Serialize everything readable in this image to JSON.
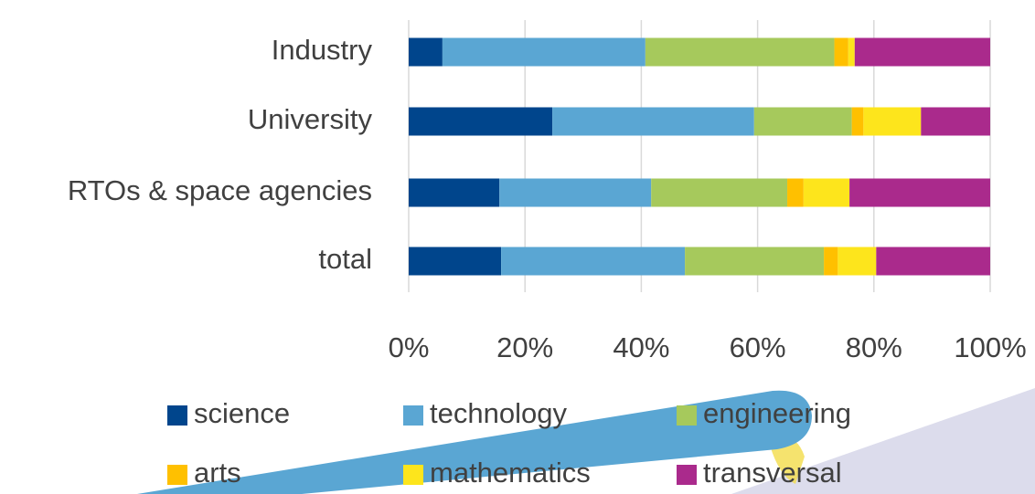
{
  "chart_data": {
    "type": "bar",
    "orientation": "horizontal",
    "stacked": true,
    "categories": [
      "Industry",
      "University",
      "RTOs & space agencies",
      "total"
    ],
    "series": [
      {
        "name": "science",
        "color": "#00458c",
        "values": [
          5.8,
          24.7,
          15.6,
          15.9
        ]
      },
      {
        "name": "technology",
        "color": "#5aa6d3",
        "values": [
          34.9,
          34.7,
          26.1,
          31.6
        ]
      },
      {
        "name": "engineering",
        "color": "#a6c95c",
        "values": [
          32.5,
          16.8,
          23.4,
          23.9
        ]
      },
      {
        "name": "arts",
        "color": "#ffc000",
        "values": [
          2.4,
          2.0,
          2.8,
          2.4
        ]
      },
      {
        "name": "mathematics",
        "color": "#fde51c",
        "values": [
          1.1,
          9.9,
          7.9,
          6.6
        ]
      },
      {
        "name": "transversal",
        "color": "#aa2a8c",
        "values": [
          23.3,
          11.9,
          24.2,
          19.6
        ]
      }
    ],
    "xlim": [
      0,
      100
    ],
    "xticks": [
      {
        "value": 0,
        "label": "0%"
      },
      {
        "value": 20,
        "label": "20%"
      },
      {
        "value": 40,
        "label": "40%"
      },
      {
        "value": 60,
        "label": "60%"
      },
      {
        "value": 80,
        "label": "80%"
      },
      {
        "value": 100,
        "label": "100%"
      }
    ],
    "grid": true,
    "legend": "bottom"
  }
}
